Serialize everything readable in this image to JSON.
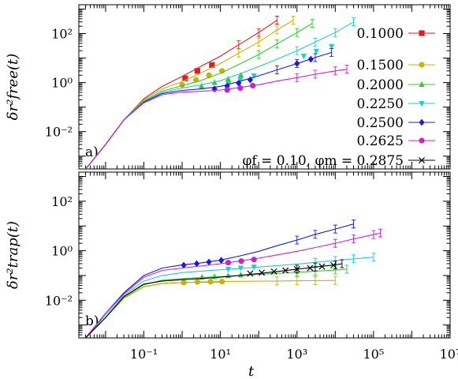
{
  "chart_data": [
    {
      "type": "line",
      "panel_label": "a)",
      "ylabel": "δr²free(t)",
      "xlabel": "t",
      "xscale": "log",
      "yscale": "log",
      "xlim": [
        0.002,
        10000000
      ],
      "ylim": [
        0.0003,
        1500
      ],
      "yticks": [
        0.01,
        1,
        100
      ],
      "ytick_labels": [
        "10⁻²",
        "10⁰",
        "10²"
      ],
      "legend_title": "φf = 0.10, φm = 0.2875",
      "legend_placement": "right",
      "series": [
        {
          "name": "0.1000",
          "color": "#e41a1c",
          "marker": "square",
          "x": [
            0.003,
            0.01,
            0.03,
            0.1,
            0.3,
            1,
            3,
            10,
            30,
            100,
            300
          ],
          "y": [
            0.0003,
            0.003,
            0.03,
            0.22,
            0.7,
            1.8,
            4.5,
            12,
            35,
            110,
            350
          ],
          "mx": [
            1.2,
            2.5,
            6
          ],
          "my": [
            1.5,
            3.0,
            5.2
          ]
        },
        {
          "name": "0.1500",
          "color": "#c8b400",
          "marker": "circle",
          "x": [
            0.003,
            0.01,
            0.03,
            0.1,
            0.3,
            1,
            3,
            10,
            30,
            100,
            300,
            800
          ],
          "y": [
            0.0003,
            0.003,
            0.03,
            0.2,
            0.55,
            1.1,
            2.4,
            6,
            16,
            45,
            140,
            350
          ],
          "mx": [
            1.0,
            2.3,
            5.0,
            11
          ],
          "my": [
            0.8,
            1.3,
            2.0,
            3.0
          ]
        },
        {
          "name": "0.2000",
          "color": "#33cc33",
          "marker": "triangle-up",
          "x": [
            0.003,
            0.01,
            0.03,
            0.1,
            0.3,
            1,
            3,
            10,
            30,
            100,
            300,
            1000,
            2500
          ],
          "y": [
            0.0003,
            0.003,
            0.03,
            0.18,
            0.45,
            0.75,
            1.2,
            2.4,
            5.5,
            14,
            38,
            110,
            260
          ],
          "mx": [
            3.2,
            7,
            16,
            34
          ],
          "my": [
            0.72,
            1.0,
            1.4,
            2.0
          ]
        },
        {
          "name": "0.2250",
          "color": "#22cccc",
          "marker": "triangle-down",
          "x": [
            0.003,
            0.01,
            0.03,
            0.1,
            0.3,
            1,
            3,
            10,
            30,
            100,
            300,
            1000,
            3000,
            10000,
            30000
          ],
          "y": [
            0.0003,
            0.003,
            0.03,
            0.17,
            0.4,
            0.6,
            0.8,
            1.2,
            2.2,
            4.5,
            9,
            20,
            45,
            110,
            300
          ],
          "mx": [
            16,
            33,
            75,
            1500,
            3200,
            8000
          ],
          "my": [
            0.9,
            1.3,
            1.9,
            12,
            19,
            30
          ]
        },
        {
          "name": "0.2500",
          "color": "#1a1ae6",
          "marker": "diamond",
          "x": [
            0.003,
            0.01,
            0.03,
            0.1,
            0.3,
            1,
            3,
            10,
            30,
            100,
            300,
            1000,
            3000,
            8000
          ],
          "y": [
            0.0003,
            0.003,
            0.03,
            0.16,
            0.36,
            0.48,
            0.55,
            0.7,
            1.1,
            1.9,
            3.3,
            6,
            10.5,
            17
          ],
          "mx": [
            7,
            15,
            30,
            60,
            1000,
            2300
          ],
          "my": [
            0.55,
            0.72,
            0.95,
            1.3,
            6,
            9
          ]
        },
        {
          "name": "0.2625",
          "color": "#cc22cc",
          "marker": "circle",
          "x": [
            0.003,
            0.01,
            0.03,
            0.1,
            0.3,
            1,
            3,
            10,
            30,
            100,
            300,
            1000,
            3000,
            10000,
            20000
          ],
          "y": [
            0.0003,
            0.003,
            0.03,
            0.15,
            0.32,
            0.41,
            0.44,
            0.5,
            0.62,
            0.82,
            1.15,
            1.6,
            2.2,
            3.0,
            3.5
          ],
          "mx": [
            15,
            33,
            70
          ],
          "my": [
            0.5,
            0.6,
            0.75
          ]
        }
      ]
    },
    {
      "type": "line",
      "panel_label": "b)",
      "ylabel": "δr²trap(t)",
      "xlabel": "t",
      "xscale": "log",
      "yscale": "log",
      "xlim": [
        0.002,
        10000000
      ],
      "ylim": [
        0.0003,
        1500
      ],
      "xticks": [
        0.1,
        10,
        1000,
        100000,
        10000000
      ],
      "xtick_labels": [
        "10⁻¹",
        "10¹",
        "10³",
        "10⁵",
        "10⁷"
      ],
      "yticks": [
        0.01,
        1,
        100
      ],
      "ytick_labels": [
        "10⁻²",
        "10⁰",
        "10²"
      ],
      "series": [
        {
          "name": "0.1000",
          "color": "#e41a1c",
          "marker": "square",
          "x": [
            0.003,
            0.01,
            0.03,
            0.1,
            0.3,
            1,
            3,
            10
          ],
          "y": [
            0.0003,
            0.002,
            0.012,
            0.035,
            0.048,
            0.052,
            0.054,
            0.055
          ],
          "mx": [],
          "my": []
        },
        {
          "name": "0.1500",
          "color": "#c8b400",
          "marker": "circle",
          "x": [
            0.003,
            0.01,
            0.03,
            0.1,
            0.3,
            1,
            3,
            10,
            30,
            100,
            300,
            1000,
            3000,
            10000
          ],
          "y": [
            0.0003,
            0.002,
            0.012,
            0.035,
            0.048,
            0.052,
            0.055,
            0.057,
            0.058,
            0.059,
            0.06,
            0.061,
            0.062,
            0.063
          ],
          "mx": [
            1.1,
            2.5,
            5.5,
            11
          ],
          "my": [
            0.052,
            0.055,
            0.056,
            0.057
          ]
        },
        {
          "name": "0.2000",
          "color": "#33cc33",
          "marker": "triangle-up",
          "x": [
            0.003,
            0.01,
            0.03,
            0.1,
            0.3,
            1,
            3,
            10,
            30,
            100,
            300,
            1000,
            3000,
            10000,
            20000
          ],
          "y": [
            0.0003,
            0.002,
            0.013,
            0.042,
            0.065,
            0.075,
            0.082,
            0.09,
            0.1,
            0.11,
            0.122,
            0.135,
            0.15,
            0.165,
            0.18
          ],
          "mx": [
            3.3,
            7,
            16,
            34
          ],
          "my": [
            0.085,
            0.09,
            0.098,
            0.105
          ]
        },
        {
          "name": "0.2250",
          "color": "#22cccc",
          "marker": "triangle-down",
          "x": [
            0.003,
            0.01,
            0.03,
            0.1,
            0.3,
            1,
            3,
            10,
            30,
            100,
            300,
            1000,
            3000,
            10000,
            30000,
            100000
          ],
          "y": [
            0.0003,
            0.0025,
            0.016,
            0.06,
            0.1,
            0.13,
            0.15,
            0.17,
            0.19,
            0.22,
            0.25,
            0.29,
            0.34,
            0.4,
            0.47,
            0.55
          ],
          "mx": [
            16,
            34,
            75
          ],
          "my": [
            0.18,
            0.2,
            0.22
          ]
        },
        {
          "name": "0.2500",
          "color": "#1a1ae6",
          "marker": "diamond",
          "x": [
            0.003,
            0.01,
            0.03,
            0.1,
            0.3,
            1,
            3,
            10,
            30,
            100,
            300,
            1000,
            3000,
            10000,
            30000
          ],
          "y": [
            0.0003,
            0.003,
            0.02,
            0.1,
            0.2,
            0.27,
            0.32,
            0.42,
            0.6,
            0.95,
            1.6,
            2.7,
            4.6,
            7.5,
            12
          ],
          "mx": [
            1.1,
            2.4,
            5.0,
            10.5
          ],
          "my": [
            0.26,
            0.3,
            0.35,
            0.41
          ]
        },
        {
          "name": "0.2625",
          "color": "#cc22cc",
          "marker": "circle",
          "x": [
            0.003,
            0.01,
            0.03,
            0.1,
            0.3,
            1,
            3,
            10,
            30,
            100,
            300,
            1000,
            3000,
            10000,
            30000,
            100000,
            150000
          ],
          "y": [
            0.0003,
            0.003,
            0.018,
            0.085,
            0.16,
            0.2,
            0.24,
            0.3,
            0.38,
            0.5,
            0.68,
            0.95,
            1.35,
            2.0,
            3.0,
            4.5,
            5.2
          ],
          "mx": [
            16,
            35,
            75
          ],
          "my": [
            0.33,
            0.38,
            0.44
          ]
        },
        {
          "name": "0.2875",
          "color": "#000000",
          "marker": "cross",
          "x": [
            0.003,
            0.01,
            0.03,
            0.1,
            0.3,
            1,
            3,
            10,
            30,
            100,
            300,
            1000,
            3000,
            10000,
            15000
          ],
          "y": [
            0.0003,
            0.002,
            0.014,
            0.045,
            0.06,
            0.068,
            0.075,
            0.085,
            0.1,
            0.12,
            0.145,
            0.18,
            0.22,
            0.27,
            0.3
          ],
          "mx": [
            60,
            120,
            250,
            500,
            1000,
            2200,
            4500,
            9000
          ],
          "my": [
            0.12,
            0.13,
            0.145,
            0.16,
            0.18,
            0.2,
            0.23,
            0.26
          ]
        }
      ]
    }
  ],
  "legend": {
    "entries": [
      {
        "label": "0.1000",
        "color": "#e41a1c",
        "marker": "square"
      },
      {
        "label": "0.1500",
        "color": "#c8b400",
        "marker": "circle"
      },
      {
        "label": "0.2000",
        "color": "#33cc33",
        "marker": "triangle-up"
      },
      {
        "label": "0.2250",
        "color": "#22cccc",
        "marker": "triangle-down"
      },
      {
        "label": "0.2500",
        "color": "#1a1ae6",
        "marker": "diamond"
      },
      {
        "label": "0.2625",
        "color": "#cc22cc",
        "marker": "circle"
      },
      {
        "label": "φf = 0.10, φm = 0.2875",
        "color": "#000000",
        "marker": "cross"
      }
    ]
  }
}
